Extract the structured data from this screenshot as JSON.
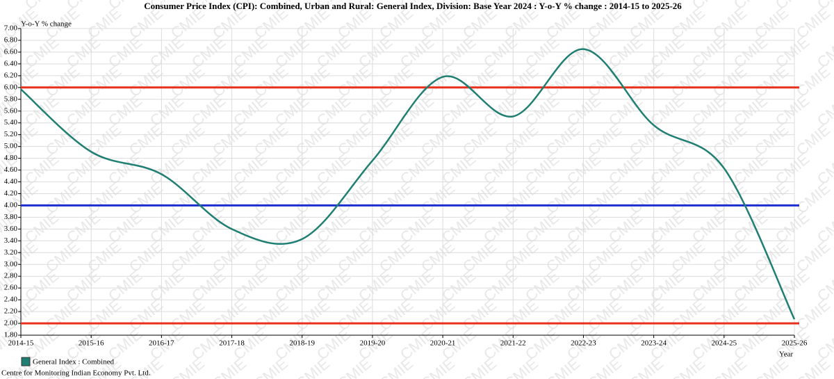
{
  "chart_data": {
    "type": "line",
    "title": "Consumer Price Index (CPI): Combined, Urban and Rural: General Index, Division: Base Year 2024 : Y-o-Y % change : 2014-15 to 2025-26",
    "y_label": "Y-o-Y % change",
    "x_label": "Year",
    "source": "Centre for Monitoring Indian Economy Pvt. Ltd.",
    "watermark": "CMIE",
    "categories": [
      "2014-15",
      "2015-16",
      "2016-17",
      "2017-18",
      "2018-19",
      "2019-20",
      "2020-21",
      "2021-22",
      "2022-23",
      "2023-24",
      "2024-25",
      "2025-26"
    ],
    "series": [
      {
        "name": "General Index : Combined",
        "color": "#1f7f72",
        "values": [
          5.97,
          4.91,
          4.53,
          3.6,
          3.43,
          4.76,
          6.18,
          5.51,
          6.65,
          5.36,
          4.63,
          2.07
        ]
      }
    ],
    "reference_lines": [
      {
        "value": 6.0,
        "color": "#e8301c"
      },
      {
        "value": 4.0,
        "color": "#1b2fd0"
      },
      {
        "value": 2.0,
        "color": "#e8301c"
      }
    ],
    "ylim": [
      1.8,
      7.0
    ],
    "yticks": [
      {
        "value": 1.8,
        "label": "1.80"
      },
      {
        "value": 2.0,
        "label": "2.00"
      },
      {
        "value": 2.2,
        "label": "2.20"
      },
      {
        "value": 2.4,
        "label": "2.40"
      },
      {
        "value": 2.6,
        "label": "2.60"
      },
      {
        "value": 2.8,
        "label": "2.80"
      },
      {
        "value": 3.0,
        "label": "3.00"
      },
      {
        "value": 3.2,
        "label": "3.20"
      },
      {
        "value": 3.4,
        "label": "3.40"
      },
      {
        "value": 3.6,
        "label": "3.60"
      },
      {
        "value": 3.8,
        "label": "3.80"
      },
      {
        "value": 4.0,
        "label": "4.00"
      },
      {
        "value": 4.2,
        "label": "4.20"
      },
      {
        "value": 4.4,
        "label": "4.40"
      },
      {
        "value": 4.6,
        "label": "4.60"
      },
      {
        "value": 4.8,
        "label": "4.80"
      },
      {
        "value": 5.0,
        "label": "5.00"
      },
      {
        "value": 5.2,
        "label": "5.20"
      },
      {
        "value": 5.4,
        "label": "5.40"
      },
      {
        "value": 5.6,
        "label": "5.60"
      },
      {
        "value": 5.8,
        "label": "5.80"
      },
      {
        "value": 6.0,
        "label": "6.00"
      },
      {
        "value": 6.2,
        "label": "6.20"
      },
      {
        "value": 6.4,
        "label": "6.40"
      },
      {
        "value": 6.6,
        "label": "6.60"
      },
      {
        "value": 6.8,
        "label": "6.80"
      },
      {
        "value": 7.0,
        "label": "7.00"
      }
    ],
    "grid": true
  }
}
